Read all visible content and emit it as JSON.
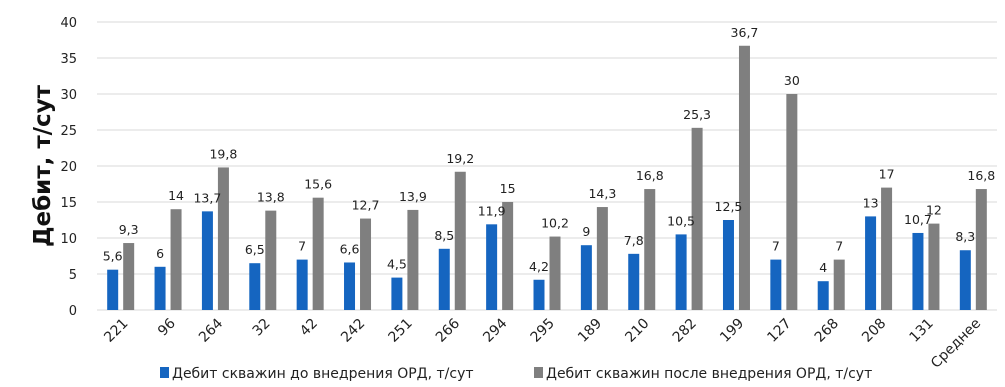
{
  "chart_data": {
    "type": "bar",
    "title": "",
    "xlabel": "",
    "ylabel": "Дебит, т/сут",
    "ylim": [
      0,
      40
    ],
    "yticks": [
      0,
      5,
      10,
      15,
      20,
      25,
      30,
      35,
      40
    ],
    "grid": "horizontal",
    "legend_position": "bottom",
    "categories": [
      "221",
      "96",
      "264",
      "32",
      "42",
      "242",
      "251",
      "266",
      "294",
      "295",
      "189",
      "210",
      "282",
      "199",
      "127",
      "268",
      "208",
      "131",
      "Среднее"
    ],
    "series": [
      {
        "name": "Дебит скважин до внедрения ОРД, т/сут",
        "color": "#1565c0",
        "values": [
          5.6,
          6,
          13.7,
          6.5,
          7,
          6.6,
          4.5,
          8.5,
          11.9,
          4.2,
          9,
          7.8,
          10.5,
          12.5,
          7,
          4,
          13,
          10.7,
          8.3
        ],
        "labels": [
          "5,6",
          "6",
          "13,7",
          "6,5",
          "7",
          "6,6",
          "4,5",
          "8,5",
          "11,9",
          "4,2",
          "9",
          "7,8",
          "10,5",
          "12,5",
          "7",
          "4",
          "13",
          "10,7",
          "8,3"
        ]
      },
      {
        "name": "Дебит скважин после внедрения ОРД, т/сут",
        "color": "#7f7f7f",
        "values": [
          9.3,
          14,
          19.8,
          13.8,
          15.6,
          12.7,
          13.9,
          19.2,
          15,
          10.2,
          14.3,
          16.8,
          25.3,
          36.7,
          30,
          7,
          17,
          12,
          16.8
        ],
        "labels": [
          "9,3",
          "14",
          "19,8",
          "13,8",
          "15,6",
          "12,7",
          "13,9",
          "19,2",
          "15",
          "10,2",
          "14,3",
          "16,8",
          "25,3",
          "36,7",
          "30",
          "7",
          "17",
          "12",
          "16,8"
        ]
      }
    ]
  }
}
